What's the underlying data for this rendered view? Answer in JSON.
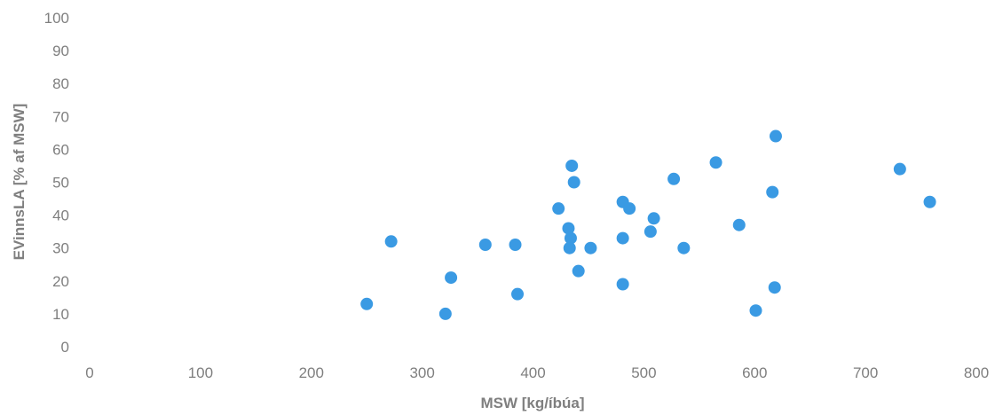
{
  "chart_data": {
    "type": "scatter",
    "title": "",
    "xlabel": "MSW [kg/íbúa]",
    "ylabel": "EVinnsLA [% af MSW]",
    "xlim": [
      0,
      800
    ],
    "ylim": [
      0,
      100
    ],
    "xticks": [
      0,
      100,
      200,
      300,
      400,
      500,
      600,
      700,
      800
    ],
    "yticks": [
      0,
      10,
      20,
      30,
      40,
      50,
      60,
      70,
      80,
      90,
      100
    ],
    "grid": false,
    "legend": "none",
    "colors": {
      "marker": "#3a9ae3",
      "text": "#7f7f7f"
    },
    "series": [
      {
        "points": [
          [
            250,
            13
          ],
          [
            272,
            32
          ],
          [
            321,
            10
          ],
          [
            326,
            21
          ],
          [
            357,
            31
          ],
          [
            384,
            31
          ],
          [
            386,
            16
          ],
          [
            423,
            42
          ],
          [
            432,
            36
          ],
          [
            433,
            30
          ],
          [
            434,
            33
          ],
          [
            435,
            55
          ],
          [
            437,
            50
          ],
          [
            441,
            23
          ],
          [
            452,
            30
          ],
          [
            481,
            44
          ],
          [
            481,
            33
          ],
          [
            481,
            19
          ],
          [
            487,
            42
          ],
          [
            506,
            35
          ],
          [
            509,
            39
          ],
          [
            527,
            51
          ],
          [
            536,
            30
          ],
          [
            565,
            56
          ],
          [
            586,
            37
          ],
          [
            601,
            11
          ],
          [
            616,
            47
          ],
          [
            618,
            18
          ],
          [
            619,
            64
          ],
          [
            731,
            54
          ],
          [
            758,
            44
          ]
        ]
      }
    ]
  }
}
